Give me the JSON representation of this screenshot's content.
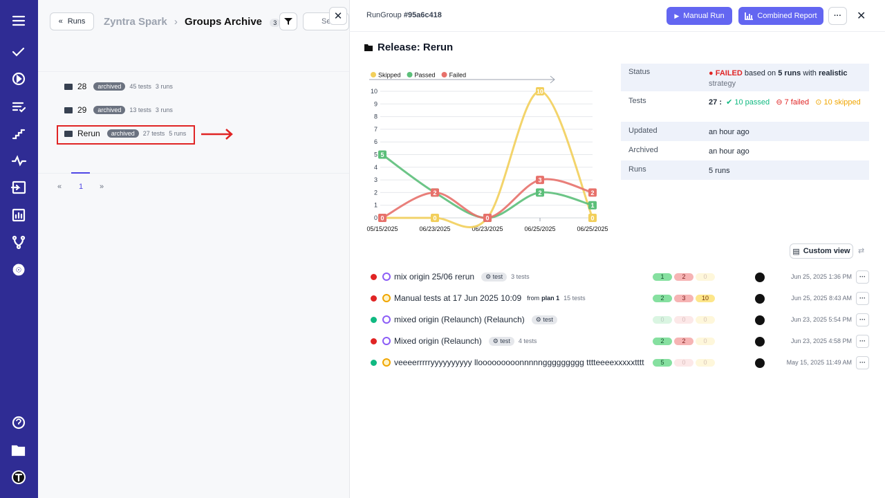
{
  "left": {
    "back": "Runs",
    "project": "Zyntra Spark",
    "separator": "›",
    "page": "Groups Archive",
    "count": "3",
    "search": "Search",
    "groups": [
      {
        "name": "28",
        "badge": "archived",
        "tests": "45 tests",
        "runs": "3 runs"
      },
      {
        "name": "29",
        "badge": "archived",
        "tests": "13 tests",
        "runs": "3 runs"
      },
      {
        "name": "Rerun",
        "badge": "archived",
        "tests": "27 tests",
        "runs": "5 runs"
      }
    ],
    "pagination": {
      "prev": "«",
      "page": "1",
      "next": "»"
    }
  },
  "panel": {
    "label": "RunGroup",
    "id": "#95a6c418",
    "manual_run": "Manual Run",
    "combined_report": "Combined Report",
    "title": "Release: Rerun",
    "status": {
      "label": "Status",
      "status": "FAILED",
      "text1": "based on",
      "runs": "5 runs",
      "text2": "with",
      "strategy": "realistic",
      "text3": "strategy"
    },
    "tests": {
      "label": "Tests",
      "total": "27",
      "sep": ":",
      "passed": "10 passed",
      "failed": "7 failed",
      "skipped": "10 skipped"
    },
    "rows": [
      {
        "label": "Updated",
        "value": "an hour ago"
      },
      {
        "label": "Archived",
        "value": "an hour ago"
      },
      {
        "label": "Runs",
        "value": "5 runs"
      }
    ],
    "custom_view": "Custom view",
    "runs": [
      {
        "status": "failed",
        "kind": "auto",
        "name": "mix origin 25/06 rerun",
        "tag": "test",
        "tests": "3 tests",
        "passed": "1",
        "failed": "2",
        "skipped": "0",
        "date": "Jun 25, 2025 1:36 PM"
      },
      {
        "status": "failed",
        "kind": "manual",
        "name": "Manual tests at 17 Jun 2025 10:09",
        "from": "from",
        "plan": "plan 1",
        "tests": "15 tests",
        "passed": "2",
        "failed": "3",
        "skipped": "10",
        "date": "Jun 25, 2025 8:43 AM"
      },
      {
        "status": "passed",
        "kind": "auto",
        "name": "mixed origin (Relaunch) (Relaunch)",
        "tag": "test",
        "passed": "0",
        "failed": "0",
        "skipped": "0",
        "date": "Jun 23, 2025 5:54 PM"
      },
      {
        "status": "failed",
        "kind": "auto",
        "name": "Mixed origin (Relaunch)",
        "tag": "test",
        "tests": "4 tests",
        "passed": "2",
        "failed": "2",
        "skipped": "0",
        "date": "Jun 23, 2025 4:58 PM"
      },
      {
        "status": "passed",
        "kind": "manual",
        "name": "veeeerrrrryyyyyyyyyy llooooooooonnnnnggggggggg tttteeeexxxxxtttt",
        "passed": "5",
        "failed": "0",
        "skipped": "0",
        "date": "May 15, 2025 11:49 AM"
      }
    ]
  },
  "chart_data": {
    "type": "line",
    "categories": [
      "05/15/2025",
      "06/23/2025",
      "06/23/2025",
      "06/25/2025",
      "06/25/2025"
    ],
    "series": [
      {
        "name": "Skipped",
        "color": "#f2cf5b",
        "values": [
          0,
          0,
          0,
          10,
          0
        ]
      },
      {
        "name": "Passed",
        "color": "#5cbf7a",
        "values": [
          5,
          2,
          0,
          2,
          1
        ]
      },
      {
        "name": "Failed",
        "color": "#e7716b",
        "values": [
          0,
          2,
          0,
          3,
          2
        ]
      }
    ],
    "ylim": [
      0,
      10
    ],
    "yticks": [
      0,
      1,
      2,
      3,
      4,
      5,
      6,
      7,
      8,
      9,
      10
    ],
    "grid": true
  }
}
